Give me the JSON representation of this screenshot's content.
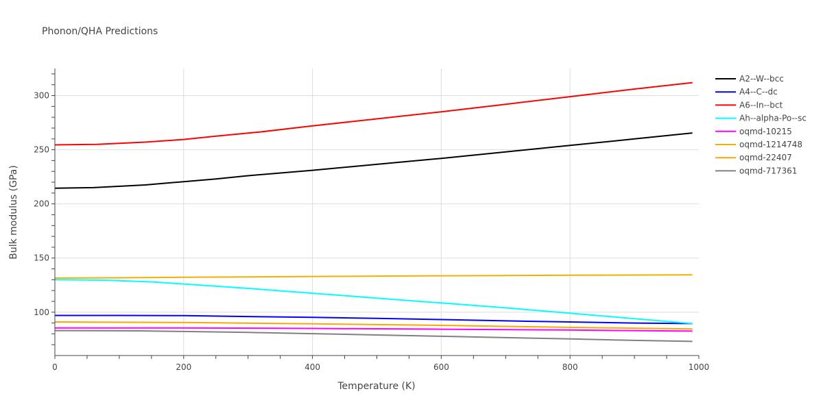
{
  "chart_data": {
    "type": "line",
    "title": "Phonon/QHA Predictions",
    "xlabel": "Temperature (K)",
    "ylabel": "Bulk modulus (GPa)",
    "xlim": [
      0,
      1000
    ],
    "ylim": [
      60,
      325
    ],
    "xticks": [
      0,
      200,
      400,
      600,
      800,
      1000
    ],
    "yticks": [
      100,
      150,
      200,
      250,
      300
    ],
    "grid": true,
    "legend_position": "right",
    "series": [
      {
        "name": "A2--W--bcc",
        "color": "#000000",
        "x": [
          0,
          60,
          140,
          200,
          250,
          300,
          400,
          500,
          600,
          700,
          800,
          900,
          990
        ],
        "y": [
          214.5,
          215,
          217.5,
          220.5,
          223,
          226,
          231,
          236.5,
          242,
          248,
          254,
          260,
          265.5
        ]
      },
      {
        "name": "A4--C--dc",
        "color": "#0000ff",
        "x": [
          0,
          100,
          200,
          300,
          400,
          500,
          600,
          700,
          800,
          900,
          990
        ],
        "y": [
          97,
          97,
          96.8,
          96,
          95.3,
          94.3,
          93.2,
          92,
          91,
          90,
          89.5
        ]
      },
      {
        "name": "A6--In--bct",
        "color": "#ff0000",
        "x": [
          0,
          65,
          140,
          200,
          250,
          320,
          400,
          500,
          600,
          700,
          800,
          900,
          990
        ],
        "y": [
          254.5,
          255,
          257,
          259.5,
          262.5,
          266.5,
          272,
          278.5,
          285,
          292,
          299,
          306,
          312
        ]
      },
      {
        "name": "Ah--alpha-Po--sc",
        "color": "#00ffff",
        "x": [
          0,
          80,
          150,
          200,
          300,
          400,
          500,
          600,
          700,
          800,
          900,
          990
        ],
        "y": [
          130,
          129.5,
          128,
          126,
          122,
          117.5,
          113,
          108.5,
          104,
          99,
          94,
          89.5
        ]
      },
      {
        "name": "oqmd-10215",
        "color": "#ff00ff",
        "x": [
          0,
          200,
          400,
          600,
          800,
          990
        ],
        "y": [
          85.5,
          85.5,
          85,
          84.3,
          83.5,
          82.5
        ]
      },
      {
        "name": "oqmd-1214748",
        "color": "#f0b000",
        "x": [
          0,
          100,
          200,
          300,
          400,
          500,
          600,
          700,
          800,
          900,
          990
        ],
        "y": [
          131.5,
          131.8,
          132.2,
          132.6,
          133,
          133.3,
          133.6,
          133.9,
          134.1,
          134.3,
          134.5
        ]
      },
      {
        "name": "oqmd-22407",
        "color": "#ffa500",
        "x": [
          0,
          200,
          400,
          600,
          800,
          990
        ],
        "y": [
          91,
          90.5,
          89.2,
          87.8,
          86,
          84.5
        ]
      },
      {
        "name": "oqmd-717361",
        "color": "#808080",
        "x": [
          0,
          130,
          200,
          300,
          400,
          500,
          600,
          700,
          800,
          900,
          990
        ],
        "y": [
          83,
          82.8,
          82.2,
          81.3,
          80.2,
          79,
          77.8,
          76.5,
          75.3,
          74,
          73
        ]
      }
    ]
  }
}
